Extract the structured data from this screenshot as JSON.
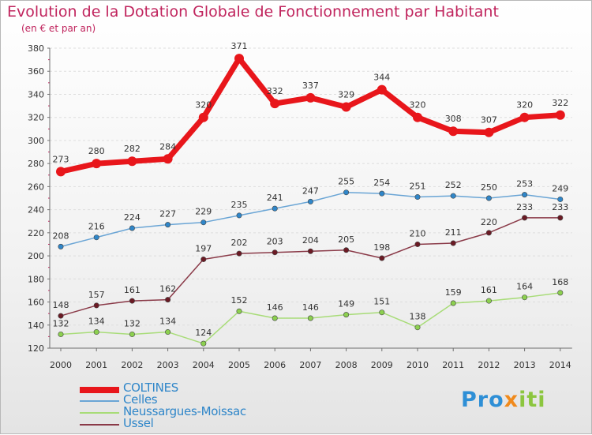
{
  "title": "Evolution de la Dotation Globale de Fonctionnement par Habitant",
  "subtitle": "(en € et par an)",
  "logo": {
    "p": "Pro",
    "x": "x",
    "i": "iti"
  },
  "colors": {
    "title": "#c0245d",
    "axis": "#6e6e6e",
    "grid": "#dddddd"
  },
  "chart_data": {
    "type": "line",
    "title": "Evolution de la Dotation Globale de Fonctionnement par Habitant",
    "subtitle": "(en € et par an)",
    "x": [
      "2000",
      "2001",
      "2002",
      "2003",
      "2004",
      "2005",
      "2006",
      "2007",
      "2008",
      "2009",
      "2010",
      "2011",
      "2012",
      "2013",
      "2014"
    ],
    "ylim": [
      120,
      380
    ],
    "yticks": [
      120,
      140,
      160,
      180,
      200,
      220,
      240,
      260,
      280,
      300,
      320,
      340,
      360,
      380
    ],
    "grid": "horizontal dashed",
    "legend": "bottom-left",
    "series": [
      {
        "name": "COLTINES",
        "color": "#e8161b",
        "marker": "#e8161b",
        "values": [
          273,
          280,
          282,
          284,
          320,
          371,
          332,
          337,
          329,
          344,
          320,
          308,
          307,
          320,
          322
        ]
      },
      {
        "name": "Celles",
        "color": "#6aa5d5",
        "marker": "#2f86c9",
        "values": [
          208,
          216,
          224,
          227,
          229,
          235,
          241,
          247,
          255,
          254,
          251,
          252,
          250,
          253,
          249
        ]
      },
      {
        "name": "Neussargues-Moissac",
        "color": "#a8dc78",
        "marker": "#8cd04f",
        "values": [
          132,
          134,
          132,
          134,
          124,
          152,
          146,
          146,
          149,
          151,
          138,
          159,
          161,
          164,
          168
        ]
      },
      {
        "name": "Ussel",
        "color": "#8a3a48",
        "marker": "#6b1a24",
        "values": [
          148,
          157,
          161,
          162,
          197,
          202,
          203,
          204,
          205,
          198,
          210,
          211,
          220,
          233,
          233
        ]
      }
    ]
  }
}
